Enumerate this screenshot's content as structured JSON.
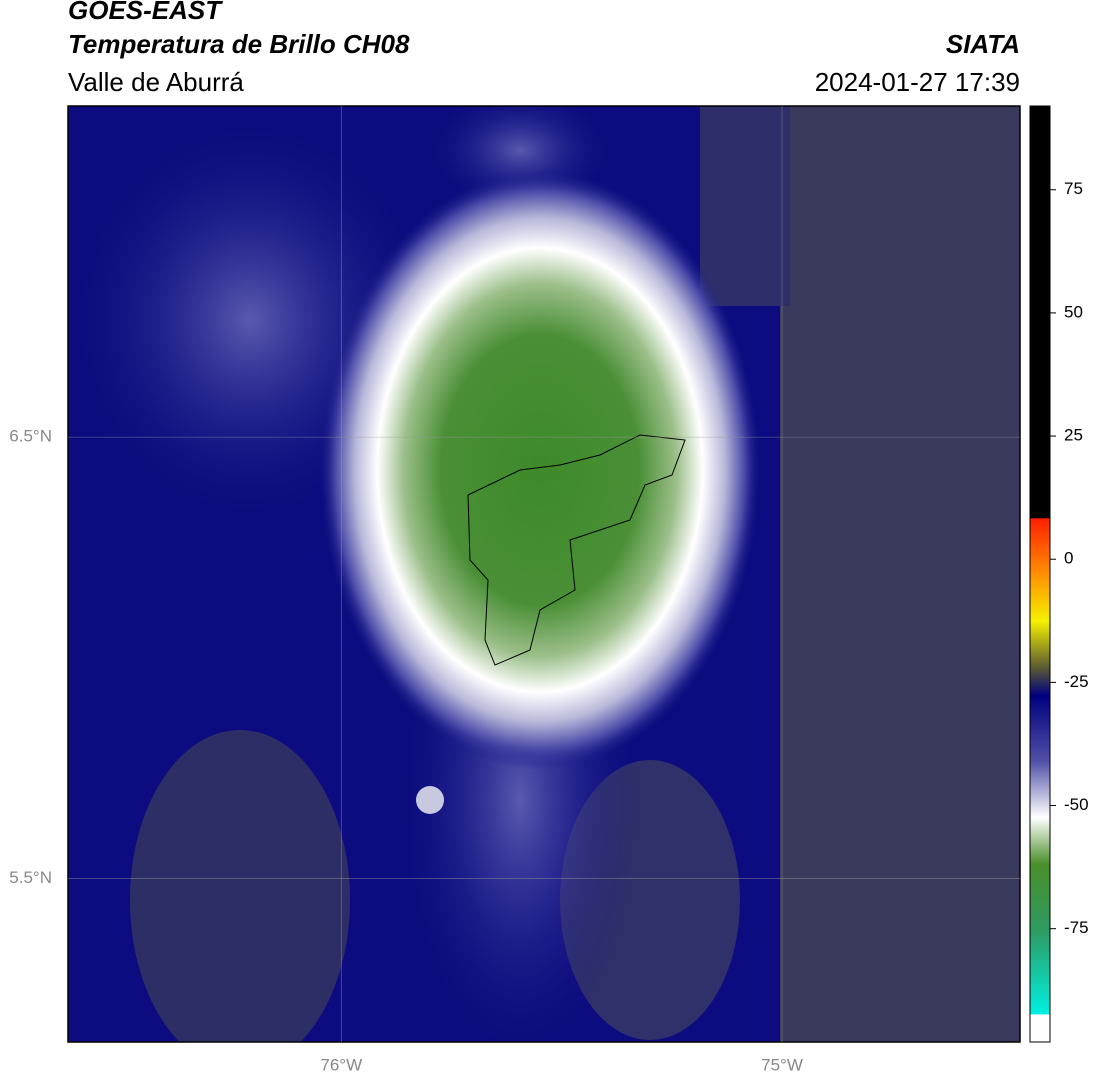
{
  "header": {
    "title": "GOES-EAST",
    "subtitle": "Temperatura de Brillo CH08",
    "region": "Valle de Aburrá",
    "source": "SIATA",
    "datetime": "2024-01-27 17:39"
  },
  "map": {
    "xlim": [
      -76.62,
      -74.46
    ],
    "ylim": [
      5.13,
      7.25
    ],
    "xticks": [
      {
        "value": -76,
        "label": "76°W"
      },
      {
        "value": -75,
        "label": "75°W"
      }
    ],
    "yticks": [
      {
        "value": 6.5,
        "label": "6.5°N"
      },
      {
        "value": 5.5,
        "label": "5.5°N"
      }
    ]
  },
  "colorbar": {
    "lim": [
      -98,
      92
    ],
    "ticks": [
      75,
      50,
      25,
      0,
      -25,
      -50,
      -75
    ]
  }
}
